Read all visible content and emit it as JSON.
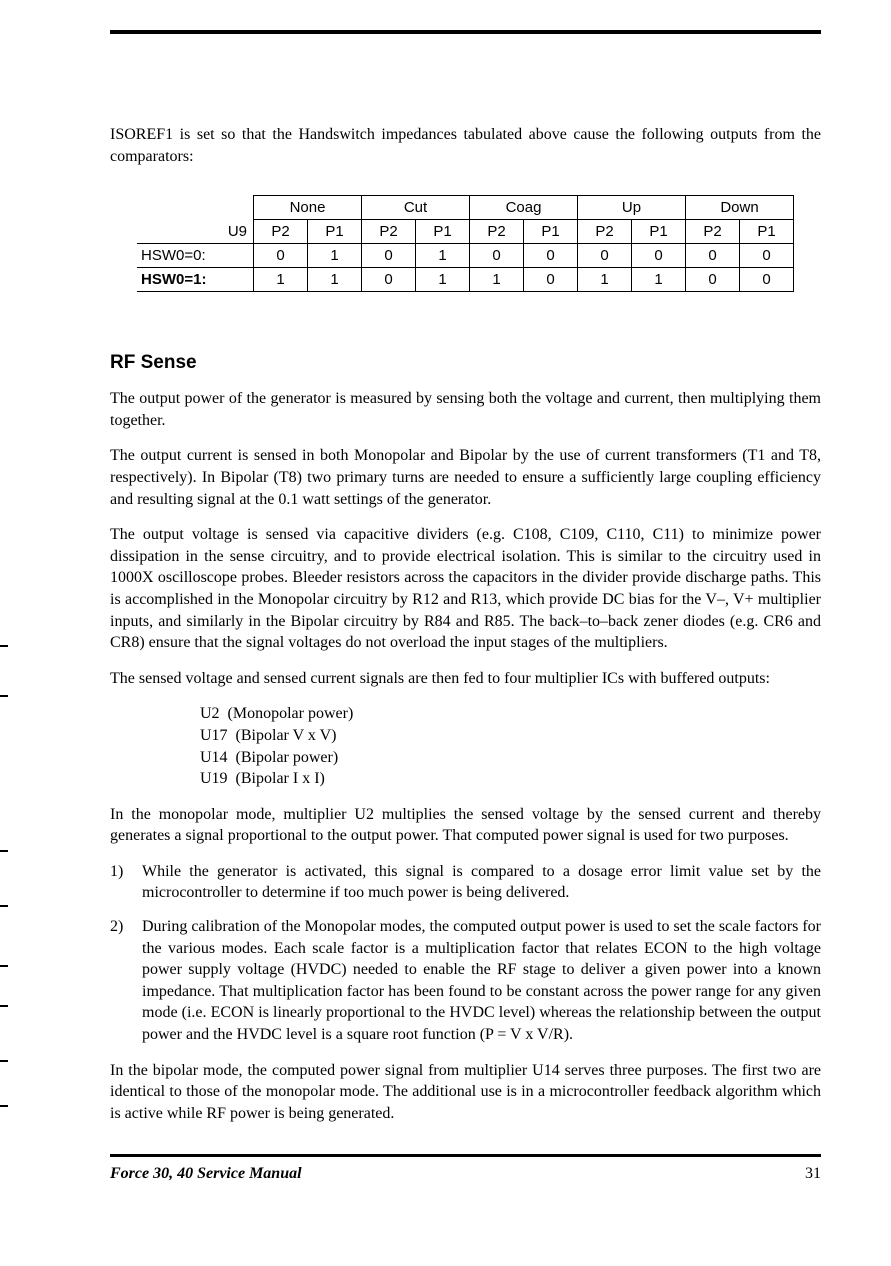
{
  "intro": "ISOREF1 is set so that the Handswitch impedances tabulated above cause the following outputs from the comparators:",
  "table": {
    "u9": "U9",
    "groups": [
      "None",
      "Cut",
      "Coag",
      "Up",
      "Down"
    ],
    "subheads": [
      "P2",
      "P1",
      "P2",
      "P1",
      "P2",
      "P1",
      "P2",
      "P1",
      "P2",
      "P1"
    ],
    "rows": [
      {
        "label": "HSW0=0:",
        "vals": [
          "0",
          "1",
          "0",
          "1",
          "0",
          "0",
          "0",
          "0",
          "0",
          "0"
        ]
      },
      {
        "label": "HSW0=1:",
        "vals": [
          "1",
          "1",
          "0",
          "1",
          "1",
          "0",
          "1",
          "1",
          "0",
          "0"
        ]
      }
    ]
  },
  "heading": "RF Sense",
  "p1": "The output power of the generator is measured by sensing both the voltage and current, then multiplying them together.",
  "p2": "The output current is sensed in both Monopolar and Bipolar by the use of current transformers (T1 and T8, respectively). In Bipolar (T8) two primary turns are needed to ensure a sufficiently large coupling efficiency and resulting signal at the 0.1 watt settings of the generator.",
  "p3": "The output voltage is sensed via capacitive dividers (e.g. C108, C109, C110, C11) to minimize power dissipation in the sense circuitry, and to provide electrical isolation. This is similar to the circuitry used in 1000X oscilloscope probes. Bleeder resistors across the capacitors in the divider provide discharge paths. This is accomplished in the Monopolar circuitry by R12 and R13, which provide DC bias for the V–, V+ multiplier inputs, and similarly in the Bipolar circuitry by R84 and R85. The back–to–back zener diodes (e.g. CR6 and CR8) ensure that the signal voltages do not overload the input stages of the multipliers.",
  "p4": "The sensed voltage and sensed current signals are then fed to four multiplier ICs with buffered outputs:",
  "multipliers": [
    "U2  (Monopolar power)",
    "U17  (Bipolar V x V)",
    "U14  (Bipolar power)",
    "U19  (Bipolar I x I)"
  ],
  "p5": "In the monopolar mode, multiplier U2 multiplies the sensed voltage by the sensed current and thereby generates a signal proportional to the output power. That computed power signal is used for two purposes.",
  "list": [
    "While the generator is activated, this signal is compared to a dosage error limit value set by the microcontroller to determine if too much power is being delivered.",
    "During calibration of the Monopolar modes, the computed output power is used to set the scale factors for the various modes. Each scale factor is a multiplication factor that relates ECON to the high voltage power supply voltage (HVDC) needed to enable the RF stage to deliver a given power into a known impedance. That multiplication factor has been found to be constant across the power range for any given mode (i.e. ECON is linearly proportional to the HVDC level) whereas the relationship between the output power and the HVDC level is a square root function (P = V x V/R)."
  ],
  "p6": "In the bipolar mode, the computed power signal from multiplier U14 serves three purposes. The first two are identical to those of the monopolar mode. The additional use is in a microcontroller feedback algorithm which is active while RF power is being generated.",
  "footer": {
    "title": "Force 30, 40 Service Manual",
    "page": "31"
  },
  "tick_positions": [
    645,
    695,
    850,
    905,
    965,
    1005,
    1060,
    1105
  ],
  "watermark_color": "rgba(100,140,200,0.18)"
}
